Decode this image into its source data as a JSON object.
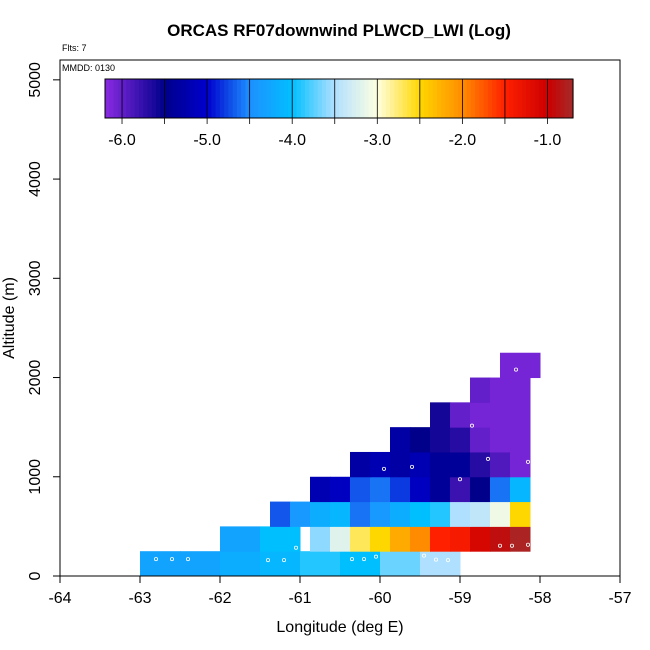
{
  "chart_data": {
    "type": "heatmap",
    "title": "ORCAS RF07downwind PLWCD_LWI (Log)",
    "flights_label": "Flts: 7",
    "date_label": "MMDD: 0130",
    "xlabel": "Longitude (deg E)",
    "ylabel": "Altitude (m)",
    "xlim": [
      -64,
      -57
    ],
    "ylim": [
      0,
      5200
    ],
    "xticks": [
      -64,
      -63,
      -62,
      -61,
      -60,
      -59,
      -58,
      -57
    ],
    "xtick_labels": [
      "-64",
      "-63",
      "-62",
      "-61",
      "-60",
      "-59",
      "-58",
      "-57"
    ],
    "yticks": [
      0,
      1000,
      2000,
      3000,
      4000,
      5000
    ],
    "ytick_labels": [
      "0",
      "1000",
      "2000",
      "3000",
      "4000",
      "5000"
    ],
    "colorbar": {
      "range": [
        -6.2,
        -0.7
      ],
      "ticks": [
        -6.0,
        -5.0,
        -4.0,
        -3.0,
        -2.0,
        -1.0
      ],
      "tick_labels": [
        "-6.0",
        "-5.0",
        "-4.0",
        "-3.0",
        "-2.0",
        "-1.0"
      ],
      "stops": [
        {
          "v": -6.2,
          "color": "#8a2be2"
        },
        {
          "v": -5.5,
          "color": "#00008b"
        },
        {
          "v": -5.0,
          "color": "#0000cd"
        },
        {
          "v": -4.5,
          "color": "#1e90ff"
        },
        {
          "v": -4.0,
          "color": "#00bfff"
        },
        {
          "v": -3.5,
          "color": "#b0e0ff"
        },
        {
          "v": -3.0,
          "color": "#ffffe0"
        },
        {
          "v": -2.5,
          "color": "#ffd700"
        },
        {
          "v": -2.0,
          "color": "#ff8c00"
        },
        {
          "v": -1.5,
          "color": "#ff2000"
        },
        {
          "v": -1.0,
          "color": "#cc0000"
        },
        {
          "v": -0.7,
          "color": "#a52a2a"
        }
      ]
    },
    "cell_width_deg": 0.5,
    "cell_height_m": 250,
    "cells": [
      {
        "lon": -62.75,
        "alt": 0,
        "v": -4.3
      },
      {
        "lon": -62.25,
        "alt": 0,
        "v": -4.3
      },
      {
        "lon": -61.75,
        "alt": 0,
        "v": -4.2
      },
      {
        "lon": -61.25,
        "alt": 0,
        "v": -4.1
      },
      {
        "lon": -60.75,
        "alt": 0,
        "v": -3.9
      },
      {
        "lon": -60.25,
        "alt": 0,
        "v": -4.0
      },
      {
        "lon": -59.75,
        "alt": 0,
        "v": -3.7
      },
      {
        "lon": -59.25,
        "alt": 0,
        "v": -3.5
      },
      {
        "lon": -61.75,
        "alt": 250,
        "v": -4.3
      },
      {
        "lon": -61.25,
        "alt": 250,
        "v": -4.0
      },
      {
        "lon": -60.75,
        "alt": 250,
        "v": -3.6
      },
      {
        "lon": -60.5,
        "alt": 250,
        "v": -3.2
      },
      {
        "lon": -60.25,
        "alt": 250,
        "v": -2.7
      },
      {
        "lon": -60.0,
        "alt": 250,
        "v": -2.5
      },
      {
        "lon": -59.75,
        "alt": 250,
        "v": -2.2
      },
      {
        "lon": -59.5,
        "alt": 250,
        "v": -2.0
      },
      {
        "lon": -59.25,
        "alt": 250,
        "v": -1.5
      },
      {
        "lon": -59.0,
        "alt": 250,
        "v": -1.4
      },
      {
        "lon": -58.75,
        "alt": 250,
        "v": -1.1
      },
      {
        "lon": -58.5,
        "alt": 250,
        "v": -0.9
      },
      {
        "lon": -58.25,
        "alt": 250,
        "v": -0.75
      },
      {
        "lon": -61.25,
        "alt": 500,
        "v": -4.7
      },
      {
        "lon": -61.0,
        "alt": 500,
        "v": -4.4
      },
      {
        "lon": -60.75,
        "alt": 500,
        "v": -4.2
      },
      {
        "lon": -60.5,
        "alt": 500,
        "v": -4.1
      },
      {
        "lon": -60.25,
        "alt": 500,
        "v": -4.6
      },
      {
        "lon": -60.0,
        "alt": 500,
        "v": -4.4
      },
      {
        "lon": -59.75,
        "alt": 500,
        "v": -4.2
      },
      {
        "lon": -59.5,
        "alt": 500,
        "v": -4.0
      },
      {
        "lon": -59.25,
        "alt": 500,
        "v": -3.9
      },
      {
        "lon": -59.0,
        "alt": 500,
        "v": -3.5
      },
      {
        "lon": -58.75,
        "alt": 500,
        "v": -3.4
      },
      {
        "lon": -58.5,
        "alt": 500,
        "v": -3.1
      },
      {
        "lon": -58.25,
        "alt": 500,
        "v": -2.5
      },
      {
        "lon": -60.75,
        "alt": 750,
        "v": -5.2
      },
      {
        "lon": -60.5,
        "alt": 750,
        "v": -5.1
      },
      {
        "lon": -60.25,
        "alt": 750,
        "v": -4.7
      },
      {
        "lon": -60.0,
        "alt": 750,
        "v": -4.6
      },
      {
        "lon": -59.75,
        "alt": 750,
        "v": -4.8
      },
      {
        "lon": -59.5,
        "alt": 750,
        "v": -5.1
      },
      {
        "lon": -59.25,
        "alt": 750,
        "v": -5.4
      },
      {
        "lon": -59.0,
        "alt": 750,
        "v": -5.8
      },
      {
        "lon": -58.75,
        "alt": 750,
        "v": -5.5
      },
      {
        "lon": -58.5,
        "alt": 750,
        "v": -4.6
      },
      {
        "lon": -58.25,
        "alt": 750,
        "v": -4.1
      },
      {
        "lon": -60.25,
        "alt": 1000,
        "v": -5.3
      },
      {
        "lon": -60.0,
        "alt": 1000,
        "v": -5.2
      },
      {
        "lon": -59.75,
        "alt": 1000,
        "v": -5.3
      },
      {
        "lon": -59.5,
        "alt": 1000,
        "v": -5.2
      },
      {
        "lon": -59.25,
        "alt": 1000,
        "v": -5.4
      },
      {
        "lon": -59.0,
        "alt": 1000,
        "v": -5.4
      },
      {
        "lon": -58.75,
        "alt": 1000,
        "v": -5.7
      },
      {
        "lon": -58.5,
        "alt": 1000,
        "v": -5.9
      },
      {
        "lon": -58.25,
        "alt": 1000,
        "v": -6.1
      },
      {
        "lon": -59.75,
        "alt": 1250,
        "v": -5.3
      },
      {
        "lon": -59.5,
        "alt": 1250,
        "v": -5.5
      },
      {
        "lon": -59.25,
        "alt": 1250,
        "v": -5.6
      },
      {
        "lon": -59.0,
        "alt": 1250,
        "v": -5.7
      },
      {
        "lon": -58.75,
        "alt": 1250,
        "v": -6.0
      },
      {
        "lon": -58.5,
        "alt": 1250,
        "v": -6.1
      },
      {
        "lon": -58.25,
        "alt": 1250,
        "v": -6.1
      },
      {
        "lon": -59.25,
        "alt": 1500,
        "v": -5.6
      },
      {
        "lon": -59.0,
        "alt": 1500,
        "v": -6.0
      },
      {
        "lon": -58.75,
        "alt": 1500,
        "v": -6.1
      },
      {
        "lon": -58.5,
        "alt": 1500,
        "v": -6.1
      },
      {
        "lon": -58.25,
        "alt": 1500,
        "v": -6.1
      },
      {
        "lon": -58.75,
        "alt": 1750,
        "v": -6.0
      },
      {
        "lon": -58.5,
        "alt": 1750,
        "v": -6.1
      },
      {
        "lon": -58.25,
        "alt": 1750,
        "v": -6.1
      },
      {
        "lon": -58.25,
        "alt": 2000,
        "v": -6.1
      }
    ],
    "markers": [
      {
        "lon": -62.8,
        "alt": 170
      },
      {
        "lon": -62.6,
        "alt": 170
      },
      {
        "lon": -62.4,
        "alt": 170
      },
      {
        "lon": -61.4,
        "alt": 160
      },
      {
        "lon": -61.2,
        "alt": 160
      },
      {
        "lon": -61.05,
        "alt": 285
      },
      {
        "lon": -60.35,
        "alt": 170
      },
      {
        "lon": -60.2,
        "alt": 170
      },
      {
        "lon": -60.05,
        "alt": 195
      },
      {
        "lon": -59.45,
        "alt": 205
      },
      {
        "lon": -59.3,
        "alt": 165
      },
      {
        "lon": -59.15,
        "alt": 160
      },
      {
        "lon": -59.0,
        "alt": 975
      },
      {
        "lon": -58.85,
        "alt": 1515
      },
      {
        "lon": -58.65,
        "alt": 1180
      },
      {
        "lon": -58.3,
        "alt": 2080
      },
      {
        "lon": -58.15,
        "alt": 1150
      },
      {
        "lon": -58.5,
        "alt": 305
      },
      {
        "lon": -58.35,
        "alt": 305
      },
      {
        "lon": -58.15,
        "alt": 315
      },
      {
        "lon": -59.95,
        "alt": 1080
      },
      {
        "lon": -59.6,
        "alt": 1100
      }
    ]
  }
}
